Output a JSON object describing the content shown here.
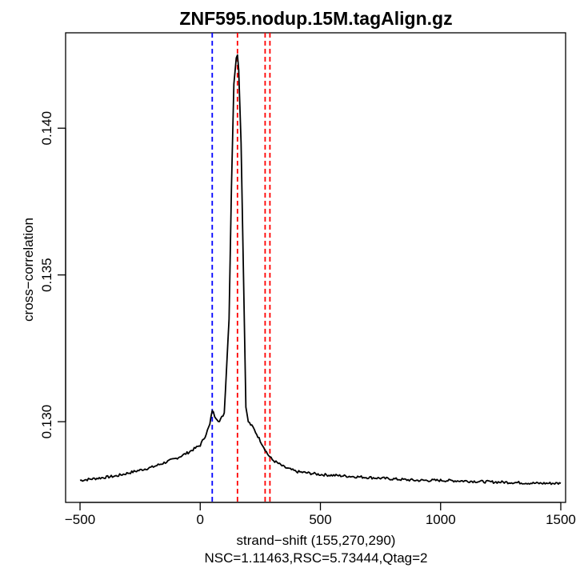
{
  "chart_data": {
    "type": "line",
    "title": "ZNF595.nodup.15M.tagAlign.gz",
    "xlabel": "strand−shift (155,270,290)",
    "ylabel": "cross−correlation",
    "subtitle": "NSC=1.11463,RSC=5.73444,Qtag=2",
    "xlim": [
      -560,
      1520
    ],
    "ylim": [
      0.12725,
      0.14325
    ],
    "x_ticks": [
      -500,
      0,
      500,
      1000,
      1500
    ],
    "x_tick_labels": [
      "−500",
      "0",
      "500",
      "1000",
      "1500"
    ],
    "y_ticks": [
      0.13,
      0.135,
      0.14
    ],
    "y_tick_labels": [
      "0.130",
      "0.135",
      "0.140"
    ],
    "grid": false,
    "series": [
      {
        "color": "#000000",
        "x": [
          -500,
          -450,
          -400,
          -350,
          -300,
          -250,
          -200,
          -150,
          -100,
          -50,
          0,
          20,
          40,
          50,
          60,
          80,
          100,
          120,
          130,
          140,
          150,
          155,
          160,
          170,
          180,
          190,
          200,
          220,
          240,
          260,
          280,
          300,
          350,
          400,
          500,
          600,
          700,
          800,
          900,
          1000,
          1100,
          1200,
          1300,
          1400,
          1500
        ],
        "y": [
          0.128,
          0.12805,
          0.1281,
          0.12815,
          0.12825,
          0.12835,
          0.12845,
          0.1286,
          0.12875,
          0.12895,
          0.1292,
          0.1295,
          0.1299,
          0.1304,
          0.1302,
          0.13,
          0.1303,
          0.1335,
          0.138,
          0.1415,
          0.1424,
          0.1425,
          0.142,
          0.1395,
          0.135,
          0.1305,
          0.13,
          0.1298,
          0.1295,
          0.1292,
          0.1289,
          0.1287,
          0.12845,
          0.1283,
          0.1282,
          0.12815,
          0.1281,
          0.12805,
          0.128,
          0.128,
          0.12798,
          0.12795,
          0.12793,
          0.1279,
          0.1279
        ]
      }
    ],
    "vertical_lines": [
      {
        "x": 50,
        "color": "#0000ff",
        "style": "dashed"
      },
      {
        "x": 155,
        "color": "#ff0000",
        "style": "dashed"
      },
      {
        "x": 270,
        "color": "#ff0000",
        "style": "dashed"
      },
      {
        "x": 290,
        "color": "#ff0000",
        "style": "dashed"
      }
    ]
  }
}
